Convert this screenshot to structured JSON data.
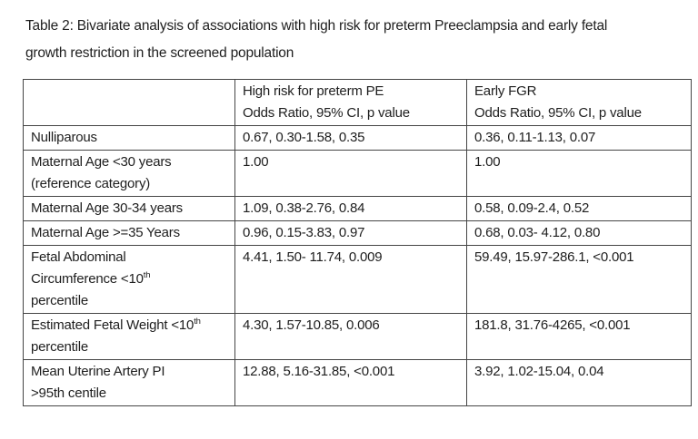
{
  "page": {
    "background": "#ffffff",
    "text_color": "#1e1e1e",
    "border_color": "#454545"
  },
  "caption": {
    "lines": [
      "Table 2: Bivariate analysis of associations with high risk for preterm Preeclampsia and early fetal",
      "growth restriction in the screened population"
    ]
  },
  "table": {
    "header": {
      "col1": "",
      "col2": {
        "line1": "High risk for preterm PE",
        "line2": "Odds Ratio, 95% CI, p value"
      },
      "col3": {
        "line1": "Early FGR",
        "line2": "Odds Ratio, 95% CI, p value"
      }
    },
    "rows": [
      {
        "label_lines": [
          {
            "text": "Nulliparous"
          }
        ],
        "pe": "0.67, 0.30-1.58, 0.35",
        "fgr": "0.36, 0.11-1.13, 0.07"
      },
      {
        "label_lines": [
          {
            "text": "Maternal Age <30 years"
          },
          {
            "text": "(reference category)"
          }
        ],
        "pe": "1.00",
        "fgr": "1.00"
      },
      {
        "label_lines": [
          {
            "text": "Maternal Age 30-34 years"
          }
        ],
        "pe": "1.09, 0.38-2.76, 0.84",
        "fgr": "0.58, 0.09-2.4, 0.52"
      },
      {
        "label_lines": [
          {
            "text": "Maternal Age >=35 Years"
          }
        ],
        "pe": "0.96, 0.15-3.83, 0.97",
        "fgr": "0.68, 0.03- 4.12, 0.80"
      },
      {
        "label_lines": [
          {
            "text": "Fetal Abdominal"
          },
          {
            "text": "Circumference <10",
            "sup": "th"
          },
          {
            "text": "percentile"
          }
        ],
        "pe": "4.41, 1.50- 11.74, 0.009",
        "fgr": "59.49, 15.97-286.1, <0.001"
      },
      {
        "label_lines": [
          {
            "text": "Estimated Fetal Weight <10",
            "sup": "th"
          },
          {
            "text": "percentile"
          }
        ],
        "pe": "4.30, 1.57-10.85, 0.006",
        "fgr": "181.8, 31.76-4265, <0.001"
      },
      {
        "label_lines": [
          {
            "text": "Mean Uterine Artery PI"
          },
          {
            "text": ">95th centile"
          }
        ],
        "pe": "12.88, 5.16-31.85, <0.001",
        "fgr": "3.92, 1.02-15.04, 0.04"
      }
    ]
  }
}
